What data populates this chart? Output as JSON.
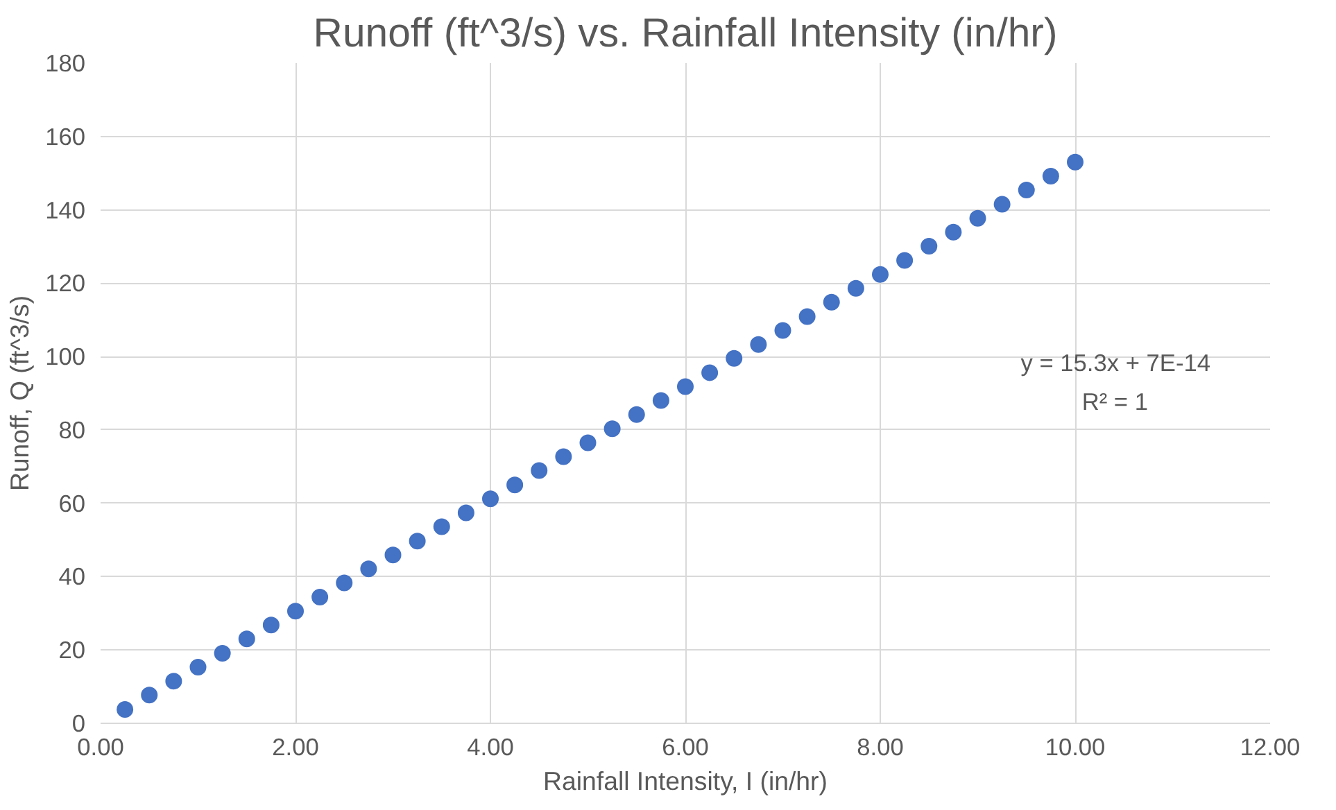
{
  "chart_data": {
    "type": "scatter",
    "title": "Runoff (ft^3/s) vs. Rainfall Intensity (in/hr)",
    "xlabel": "Rainfall Intensity, I (in/hr)",
    "ylabel": "Runoff, Q (ft^3/s)",
    "x": [
      0.25,
      0.5,
      0.75,
      1.0,
      1.25,
      1.5,
      1.75,
      2.0,
      2.25,
      2.5,
      2.75,
      3.0,
      3.25,
      3.5,
      3.75,
      4.0,
      4.25,
      4.5,
      4.75,
      5.0,
      5.25,
      5.5,
      5.75,
      6.0,
      6.25,
      6.5,
      6.75,
      7.0,
      7.25,
      7.5,
      7.75,
      8.0,
      8.25,
      8.5,
      8.75,
      9.0,
      9.25,
      9.5,
      9.75,
      10.0
    ],
    "series": [
      {
        "color": "#4472c4",
        "values": [
          3.8,
          7.7,
          11.5,
          15.3,
          19.1,
          23.0,
          26.8,
          30.6,
          34.4,
          38.3,
          42.1,
          45.9,
          49.7,
          53.6,
          57.4,
          61.2,
          65.0,
          68.9,
          72.7,
          76.5,
          80.3,
          84.2,
          88.0,
          91.8,
          95.6,
          99.5,
          103.3,
          107.1,
          110.9,
          114.8,
          118.6,
          122.4,
          126.2,
          130.1,
          133.9,
          137.7,
          141.5,
          145.4,
          149.2,
          153.0
        ]
      }
    ],
    "marker": "circle",
    "grid": true,
    "xlim": [
      0,
      12
    ],
    "ylim": [
      0,
      180
    ],
    "xticks": [
      {
        "value": 0,
        "label": "0.00"
      },
      {
        "value": 2,
        "label": "2.00"
      },
      {
        "value": 4,
        "label": "4.00"
      },
      {
        "value": 6,
        "label": "6.00"
      },
      {
        "value": 8,
        "label": "8.00"
      },
      {
        "value": 10,
        "label": "10.00"
      },
      {
        "value": 12,
        "label": "12.00"
      }
    ],
    "yticks": [
      0,
      20,
      40,
      60,
      80,
      100,
      120,
      140,
      160,
      180
    ],
    "annotations": [
      "y = 15.3x + 7E-14",
      "R² = 1"
    ]
  }
}
